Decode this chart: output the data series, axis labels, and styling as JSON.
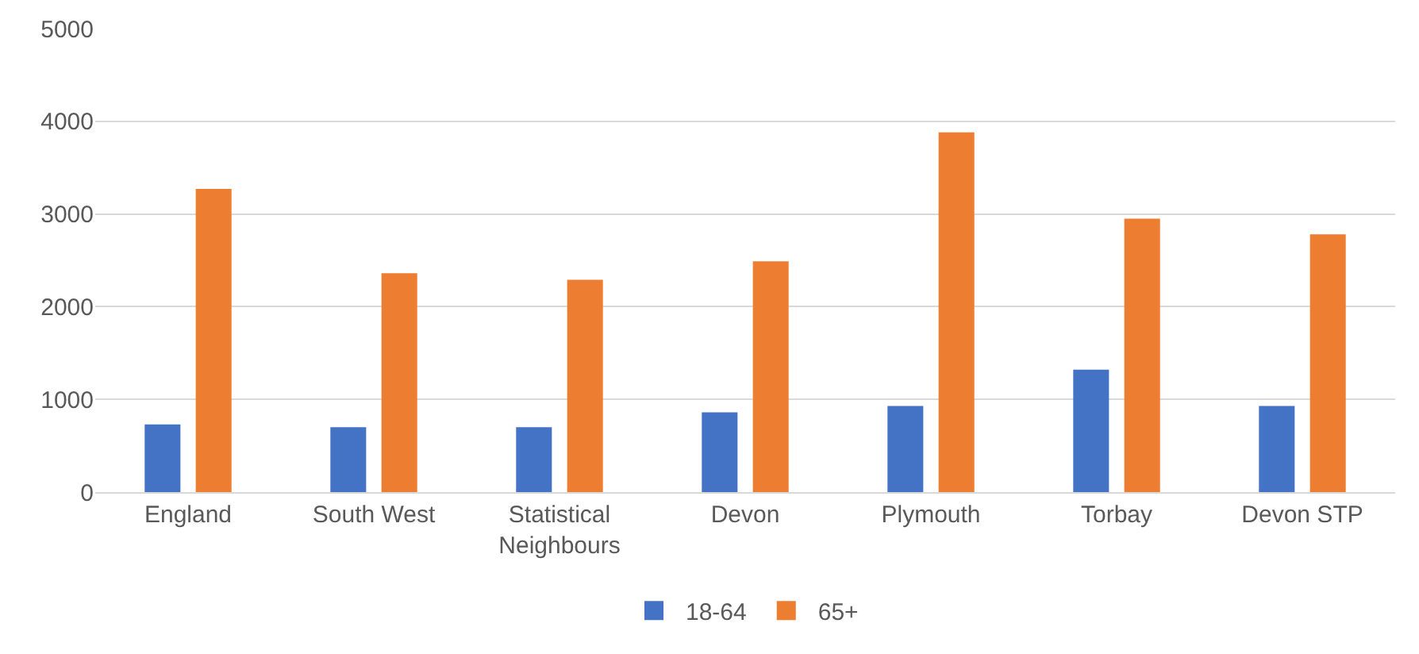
{
  "chart_data": {
    "type": "bar",
    "categories": [
      "England",
      "South West",
      "Statistical Neighbours",
      "Devon",
      "Plymouth",
      "Torbay",
      "Devon STP"
    ],
    "series": [
      {
        "name": "18-64",
        "color": "#4472c4",
        "values": [
          730,
          700,
          700,
          860,
          930,
          1320,
          930
        ]
      },
      {
        "name": "65+",
        "color": "#ed7d31",
        "values": [
          3270,
          2360,
          2290,
          2490,
          3880,
          2950,
          2780
        ]
      }
    ],
    "ylim": [
      0,
      5000
    ],
    "yticks": [
      0,
      1000,
      2000,
      3000,
      4000,
      5000
    ],
    "grid": "y",
    "legend": "bottom"
  }
}
